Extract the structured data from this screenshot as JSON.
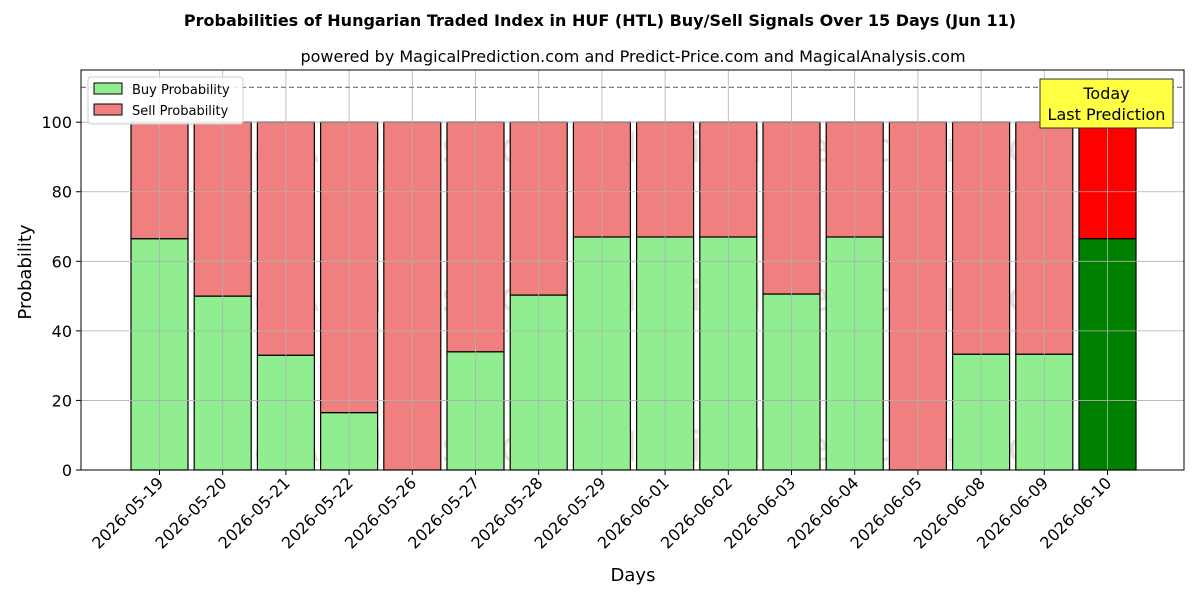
{
  "chart_data": {
    "type": "bar",
    "stacked": true,
    "title": "Probabilities of Hungarian Traded Index in HUF (HTL) Buy/Sell Signals Over 15 Days (Jun 11)",
    "subtitle": "powered by MagicalPrediction.com and Predict-Price.com and MagicalAnalysis.com",
    "xlabel": "Days",
    "ylabel": "Probability",
    "ylim": [
      0,
      115
    ],
    "yticks": [
      0,
      20,
      40,
      60,
      80,
      100
    ],
    "grid": true,
    "legend_position": "top-left",
    "reference_line": {
      "value": 110,
      "style": "dashed"
    },
    "categories": [
      "2026-05-19",
      "2026-05-20",
      "2026-05-21",
      "2026-05-22",
      "2026-05-26",
      "2026-05-27",
      "2026-05-28",
      "2026-05-29",
      "2026-06-01",
      "2026-06-02",
      "2026-06-03",
      "2026-06-04",
      "2026-06-05",
      "2026-06-08",
      "2026-06-09",
      "2026-06-10"
    ],
    "series": [
      {
        "name": "Buy Probability",
        "color": "#90ee90",
        "highlight_color": "#008000",
        "values": [
          66.5,
          50,
          33,
          16.5,
          0,
          34,
          50.3,
          67,
          67,
          67,
          50.6,
          67,
          0,
          33.3,
          33.3,
          66.5
        ]
      },
      {
        "name": "Sell Probability",
        "color": "#f08080",
        "highlight_color": "#ff0000",
        "values": [
          33.5,
          50,
          67,
          83.5,
          100,
          66,
          49.7,
          33,
          33,
          33,
          49.4,
          33,
          100,
          66.7,
          66.7,
          33.5
        ]
      }
    ],
    "highlight_index": 15,
    "annotation": {
      "line1": "Today",
      "line2": "Last Prediction",
      "color": "#ffff44"
    },
    "watermarks": [
      "MagicalAnalysis.com",
      "MagicalPrediction.com"
    ]
  }
}
